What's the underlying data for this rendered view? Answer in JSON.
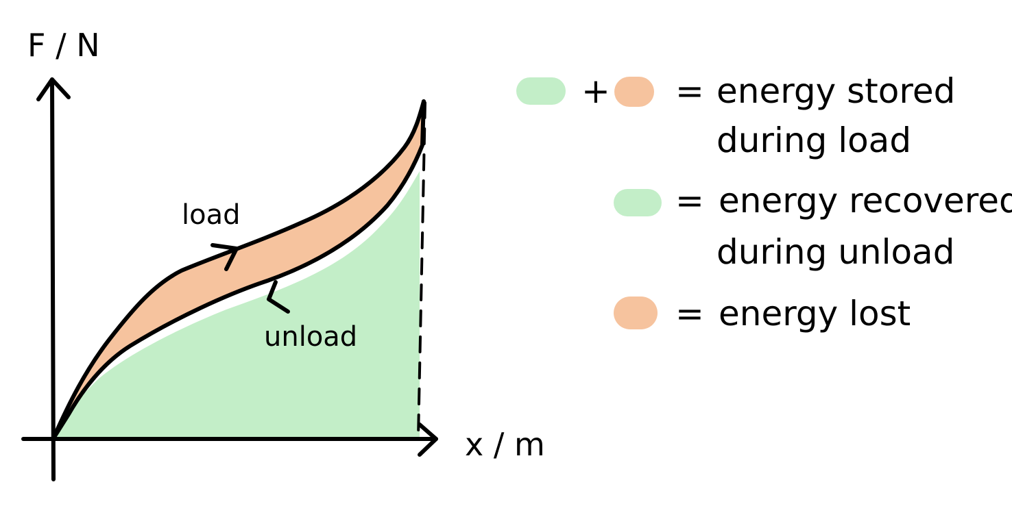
{
  "axes": {
    "y_label": "F / N",
    "x_label": "x / m"
  },
  "curves": {
    "load_label": "load",
    "unload_label": "unload"
  },
  "colors": {
    "energy_recovered": "#c3eec8",
    "energy_lost": "#f6c39e",
    "ink": "#000000"
  },
  "legend": {
    "plus_sign": "+",
    "equals_sign": "=",
    "stored": {
      "line1": "energy stored",
      "line2": "during load"
    },
    "recovered": {
      "line1": "energy recovered",
      "line2": "during unload"
    },
    "lost": {
      "line1": "energy lost"
    }
  }
}
